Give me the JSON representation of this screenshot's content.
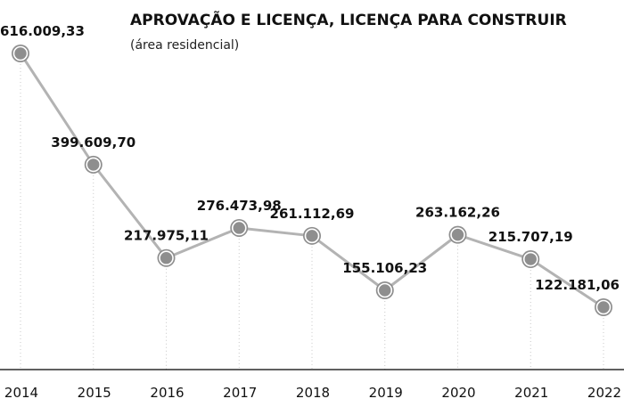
{
  "chart_data": {
    "type": "line",
    "title": "APROVAÇÃO E LICENÇA, LICENÇA PARA CONSTRUIR",
    "subtitle": "(área residencial)",
    "categories": [
      "2014",
      "2015",
      "2016",
      "2017",
      "2018",
      "2019",
      "2020",
      "2021",
      "2022"
    ],
    "series": [
      {
        "values": [
          616009.33,
          399609.7,
          217975.11,
          276473.98,
          261112.69,
          155106.23,
          263162.26,
          215707.19,
          122181.06
        ],
        "labels": [
          "616.009,33",
          "399.609,70",
          "217.975,11",
          "276.473,98",
          "261.112,69",
          "155.106,23",
          "263.162,26",
          "215.707,19",
          "122.181,06"
        ]
      }
    ],
    "ylim": [
      0,
      616009.33
    ],
    "grid": "vertical-dotted",
    "legend": "none",
    "colors": {
      "line": "#b3b3b3",
      "marker_fill": "#8e8e8e",
      "marker_ring": "#ffffff",
      "grid": "#c8c8c8",
      "axis": "#000000"
    }
  }
}
